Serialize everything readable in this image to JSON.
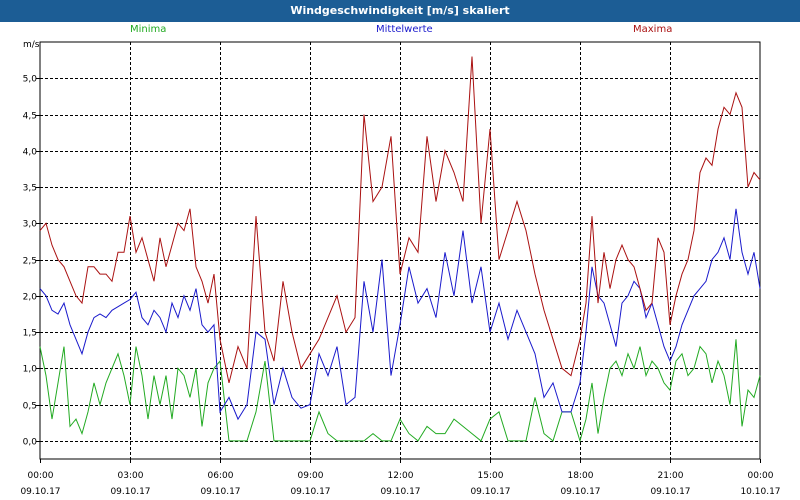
{
  "window": {
    "title": "Windgeschwindigkeit [m/s] skaliert"
  },
  "chart_data": {
    "type": "line",
    "title": "Windgeschwindigkeit [m/s] skaliert",
    "ylabel": "m/s",
    "xlabel": "",
    "ylim": [
      -0.25,
      5.5
    ],
    "xlim_hours": [
      0,
      24
    ],
    "grid": true,
    "legend_placement": "top",
    "y_ticks": [
      "0,0",
      "0,5",
      "1,0",
      "1,5",
      "2,0",
      "2,5",
      "3,0",
      "3,5",
      "4,0",
      "4,5",
      "5,0"
    ],
    "x_ticks": [
      {
        "time": "00:00",
        "date": "09.10.17"
      },
      {
        "time": "03:00",
        "date": "09.10.17"
      },
      {
        "time": "06:00",
        "date": "09.10.17"
      },
      {
        "time": "09:00",
        "date": "09.10.17"
      },
      {
        "time": "12:00",
        "date": "09.10.17"
      },
      {
        "time": "15:00",
        "date": "09.10.17"
      },
      {
        "time": "18:00",
        "date": "09.10.17"
      },
      {
        "time": "21:00",
        "date": "09.10.17"
      },
      {
        "time": "00:00",
        "date": "10.10.17"
      }
    ],
    "series": [
      {
        "name": "Minima",
        "color": "#22aa22",
        "x": [
          0.0,
          0.2,
          0.4,
          0.6,
          0.8,
          1.0,
          1.2,
          1.4,
          1.6,
          1.8,
          2.0,
          2.2,
          2.4,
          2.6,
          2.8,
          3.0,
          3.2,
          3.4,
          3.6,
          3.8,
          4.0,
          4.2,
          4.4,
          4.6,
          4.8,
          5.0,
          5.2,
          5.4,
          5.6,
          5.8,
          6.0,
          6.3,
          6.6,
          6.9,
          7.2,
          7.5,
          7.8,
          8.1,
          8.4,
          8.7,
          9.0,
          9.3,
          9.6,
          9.9,
          10.2,
          10.5,
          10.8,
          11.1,
          11.4,
          11.7,
          12.0,
          12.3,
          12.6,
          12.9,
          13.2,
          13.5,
          13.8,
          14.1,
          14.4,
          14.7,
          15.0,
          15.3,
          15.6,
          15.9,
          16.2,
          16.5,
          16.8,
          17.1,
          17.4,
          17.7,
          18.0,
          18.2,
          18.4,
          18.6,
          18.8,
          19.0,
          19.2,
          19.4,
          19.6,
          19.8,
          20.0,
          20.2,
          20.4,
          20.6,
          20.8,
          21.0,
          21.2,
          21.4,
          21.6,
          21.8,
          22.0,
          22.2,
          22.4,
          22.6,
          22.8,
          23.0,
          23.2,
          23.4,
          23.6,
          23.8,
          24.0
        ],
        "values": [
          1.3,
          0.9,
          0.3,
          0.8,
          1.3,
          0.2,
          0.3,
          0.1,
          0.4,
          0.8,
          0.5,
          0.8,
          1.0,
          1.2,
          0.9,
          0.5,
          1.3,
          0.9,
          0.3,
          0.9,
          0.5,
          0.9,
          0.3,
          1.0,
          0.9,
          0.6,
          1.0,
          0.2,
          0.8,
          1.0,
          1.1,
          0.0,
          0.0,
          0.0,
          0.4,
          1.1,
          0.0,
          0.0,
          0.0,
          0.0,
          0.0,
          0.4,
          0.1,
          0.0,
          0.0,
          0.0,
          0.0,
          0.1,
          0.0,
          0.0,
          0.3,
          0.1,
          0.0,
          0.2,
          0.1,
          0.1,
          0.3,
          0.2,
          0.1,
          0.0,
          0.3,
          0.4,
          0.0,
          0.0,
          0.0,
          0.6,
          0.1,
          0.0,
          0.4,
          0.4,
          0.0,
          0.3,
          0.8,
          0.1,
          0.6,
          1.0,
          1.1,
          0.9,
          1.2,
          1.0,
          1.3,
          0.9,
          1.1,
          1.0,
          0.8,
          0.7,
          1.1,
          1.2,
          0.9,
          1.0,
          1.3,
          1.2,
          0.8,
          1.1,
          0.9,
          0.5,
          1.4,
          0.2,
          0.7,
          0.6,
          0.9
        ]
      },
      {
        "name": "Mittelwerte",
        "color": "#1a1acc",
        "x": [
          0.0,
          0.2,
          0.4,
          0.6,
          0.8,
          1.0,
          1.2,
          1.4,
          1.6,
          1.8,
          2.0,
          2.2,
          2.4,
          2.6,
          2.8,
          3.0,
          3.2,
          3.4,
          3.6,
          3.8,
          4.0,
          4.2,
          4.4,
          4.6,
          4.8,
          5.0,
          5.2,
          5.4,
          5.6,
          5.8,
          6.0,
          6.3,
          6.6,
          6.9,
          7.2,
          7.5,
          7.8,
          8.1,
          8.4,
          8.7,
          9.0,
          9.3,
          9.6,
          9.9,
          10.2,
          10.5,
          10.8,
          11.1,
          11.4,
          11.7,
          12.0,
          12.3,
          12.6,
          12.9,
          13.2,
          13.5,
          13.8,
          14.1,
          14.4,
          14.7,
          15.0,
          15.3,
          15.6,
          15.9,
          16.2,
          16.5,
          16.8,
          17.1,
          17.4,
          17.7,
          18.0,
          18.2,
          18.4,
          18.6,
          18.8,
          19.0,
          19.2,
          19.4,
          19.6,
          19.8,
          20.0,
          20.2,
          20.4,
          20.6,
          20.8,
          21.0,
          21.2,
          21.4,
          21.6,
          21.8,
          22.0,
          22.2,
          22.4,
          22.6,
          22.8,
          23.0,
          23.2,
          23.4,
          23.6,
          23.8,
          24.0
        ],
        "values": [
          2.1,
          2.0,
          1.8,
          1.75,
          1.9,
          1.6,
          1.4,
          1.2,
          1.5,
          1.7,
          1.75,
          1.7,
          1.8,
          1.85,
          1.9,
          1.95,
          2.05,
          1.7,
          1.6,
          1.8,
          1.7,
          1.5,
          1.9,
          1.7,
          2.0,
          1.8,
          2.1,
          1.6,
          1.5,
          1.6,
          0.4,
          0.6,
          0.3,
          0.5,
          1.5,
          1.4,
          0.5,
          1.0,
          0.6,
          0.45,
          0.5,
          1.2,
          0.9,
          1.3,
          0.5,
          0.6,
          2.2,
          1.5,
          2.5,
          0.9,
          1.6,
          2.4,
          1.9,
          2.1,
          1.7,
          2.6,
          2.0,
          2.9,
          1.9,
          2.4,
          1.5,
          1.9,
          1.4,
          1.8,
          1.5,
          1.2,
          0.6,
          0.8,
          0.4,
          0.4,
          0.8,
          1.5,
          2.4,
          2.0,
          1.9,
          1.6,
          1.3,
          1.9,
          2.0,
          2.2,
          2.1,
          1.7,
          1.9,
          1.6,
          1.3,
          1.1,
          1.3,
          1.6,
          1.8,
          2.0,
          2.1,
          2.2,
          2.5,
          2.6,
          2.8,
          2.5,
          3.2,
          2.6,
          2.3,
          2.6,
          2.1
        ]
      },
      {
        "name": "Maxima",
        "color": "#aa1111",
        "x": [
          0.0,
          0.2,
          0.4,
          0.6,
          0.8,
          1.0,
          1.2,
          1.4,
          1.6,
          1.8,
          2.0,
          2.2,
          2.4,
          2.6,
          2.8,
          3.0,
          3.2,
          3.4,
          3.6,
          3.8,
          4.0,
          4.2,
          4.4,
          4.6,
          4.8,
          5.0,
          5.2,
          5.4,
          5.6,
          5.8,
          6.0,
          6.3,
          6.6,
          6.9,
          7.2,
          7.5,
          7.8,
          8.1,
          8.4,
          8.7,
          9.0,
          9.3,
          9.6,
          9.9,
          10.2,
          10.5,
          10.8,
          11.1,
          11.4,
          11.7,
          12.0,
          12.3,
          12.6,
          12.9,
          13.2,
          13.5,
          13.8,
          14.1,
          14.4,
          14.7,
          15.0,
          15.3,
          15.6,
          15.9,
          16.2,
          16.5,
          16.8,
          17.1,
          17.4,
          17.7,
          18.0,
          18.2,
          18.4,
          18.6,
          18.8,
          19.0,
          19.2,
          19.4,
          19.6,
          19.8,
          20.0,
          20.2,
          20.4,
          20.6,
          20.8,
          21.0,
          21.2,
          21.4,
          21.6,
          21.8,
          22.0,
          22.2,
          22.4,
          22.6,
          22.8,
          23.0,
          23.2,
          23.4,
          23.6,
          23.8,
          24.0
        ],
        "values": [
          2.9,
          3.0,
          2.7,
          2.5,
          2.4,
          2.2,
          2.0,
          1.9,
          2.4,
          2.4,
          2.3,
          2.3,
          2.2,
          2.6,
          2.6,
          3.1,
          2.6,
          2.8,
          2.5,
          2.2,
          2.8,
          2.4,
          2.7,
          3.0,
          2.9,
          3.2,
          2.4,
          2.2,
          1.9,
          2.3,
          1.4,
          0.8,
          1.3,
          1.0,
          3.1,
          1.5,
          1.1,
          2.2,
          1.5,
          1.0,
          1.2,
          1.4,
          1.7,
          2.0,
          1.5,
          1.7,
          4.5,
          3.3,
          3.5,
          4.2,
          2.3,
          2.8,
          2.6,
          4.2,
          3.3,
          4.0,
          3.7,
          3.3,
          5.3,
          3.0,
          4.3,
          2.5,
          2.9,
          3.3,
          2.9,
          2.3,
          1.8,
          1.4,
          1.0,
          0.9,
          1.4,
          1.9,
          3.1,
          1.9,
          2.6,
          2.1,
          2.5,
          2.7,
          2.5,
          2.4,
          2.1,
          1.8,
          1.9,
          2.8,
          2.6,
          1.6,
          2.0,
          2.3,
          2.5,
          2.9,
          3.7,
          3.9,
          3.8,
          4.3,
          4.6,
          4.5,
          4.8,
          4.6,
          3.5,
          3.7,
          3.6
        ]
      }
    ]
  }
}
